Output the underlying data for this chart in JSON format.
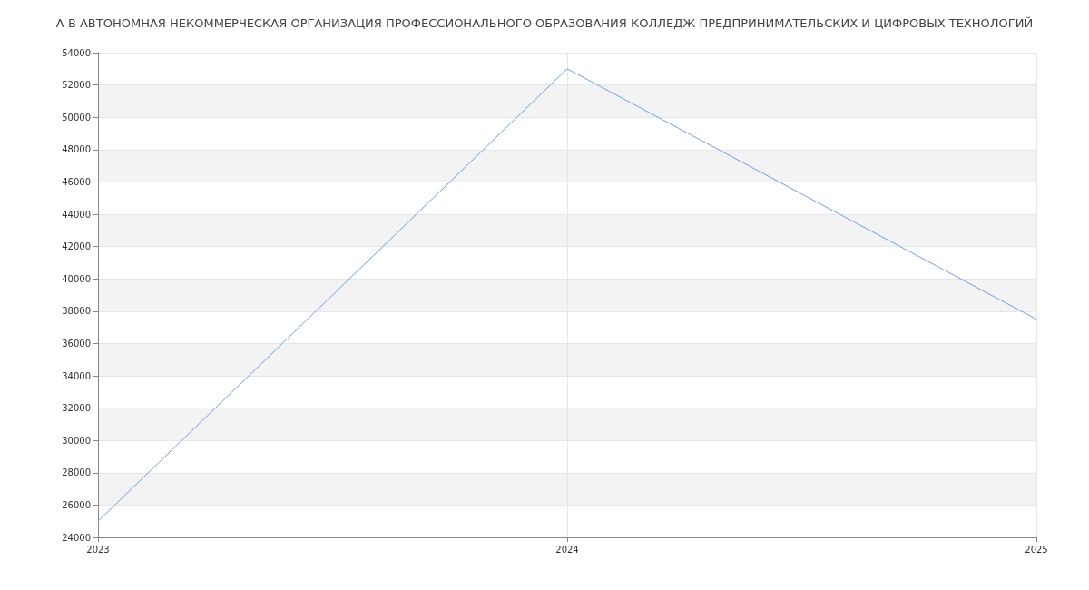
{
  "chart_data": {
    "type": "line",
    "title": "А В АВТОНОМНАЯ НЕКОММЕРЧЕСКАЯ ОРГАНИЗАЦИЯ ПРОФЕССИОНАЛЬНОГО ОБРАЗОВАНИЯ КОЛЛЕДЖ ПРЕДПРИНИМАТЕЛЬСКИХ И ЦИФРОВЫХ ТЕХНОЛОГИЙ",
    "x": [
      2023,
      2024,
      2025
    ],
    "series": [
      {
        "color": "#6e9cf4",
        "values": [
          25000,
          53000,
          37500
        ]
      }
    ],
    "xlim": [
      2023,
      2025
    ],
    "xticks": [
      2023,
      2024,
      2025
    ],
    "ylim": [
      24000,
      54000
    ],
    "yticks": [
      24000,
      26000,
      28000,
      30000,
      32000,
      34000,
      36000,
      38000,
      40000,
      42000,
      44000,
      46000,
      48000,
      50000,
      52000,
      54000
    ],
    "grid": true,
    "marker": "none",
    "line_style": "solid"
  }
}
